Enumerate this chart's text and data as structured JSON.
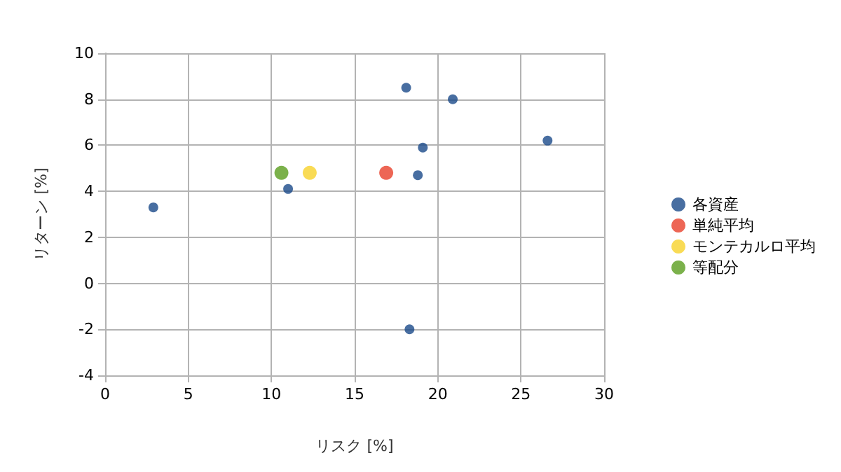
{
  "chart_data": {
    "type": "scatter",
    "xlabel": "リスク [%]",
    "ylabel": "リターン [%]",
    "series": [
      {
        "name": "各資産",
        "color": "#1a4a8a",
        "x": [
          2.9,
          11.0,
          18.1,
          20.9,
          26.6,
          19.1,
          18.8,
          18.3
        ],
        "values": [
          3.3,
          4.1,
          8.5,
          8.0,
          6.2,
          5.9,
          4.7,
          -2.0
        ]
      },
      {
        "name": "単純平均",
        "color": "#e8402a",
        "x": [
          16.9
        ],
        "values": [
          4.8
        ]
      },
      {
        "name": "モンテカルロ平均",
        "color": "#f8d22a",
        "x": [
          12.3
        ],
        "values": [
          4.8
        ]
      },
      {
        "name": "等配分",
        "color": "#5a9e1e",
        "x": [
          10.6
        ],
        "values": [
          4.8
        ]
      }
    ],
    "xlim": [
      0,
      30
    ],
    "xticks": [
      0,
      5,
      10,
      15,
      20,
      25,
      30
    ],
    "ylim": [
      -4,
      10
    ],
    "yticks": [
      -4,
      -2,
      0,
      2,
      4,
      6,
      8,
      10
    ],
    "grid": true,
    "legend": "right",
    "marker": "circle"
  }
}
